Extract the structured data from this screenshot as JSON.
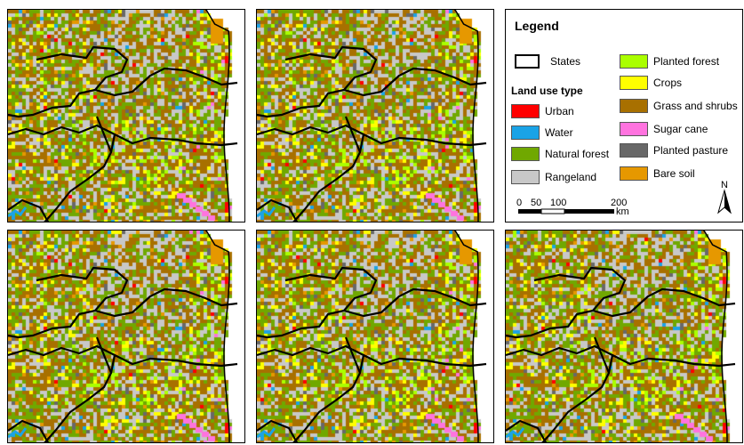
{
  "legend": {
    "title": "Legend",
    "states_label": "States",
    "land_use_heading": "Land use type",
    "classes": [
      {
        "name": "Urban",
        "color": "#ff0000"
      },
      {
        "name": "Water",
        "color": "#1aa3e6"
      },
      {
        "name": "Natural forest",
        "color": "#70a800"
      },
      {
        "name": "Rangeland",
        "color": "#c8c8c8"
      },
      {
        "name": "Planted forest",
        "color": "#aaff00"
      },
      {
        "name": "Crops",
        "color": "#ffff00"
      },
      {
        "name": "Grass and shrubs",
        "color": "#a87000"
      },
      {
        "name": "Sugar cane",
        "color": "#ff73df"
      },
      {
        "name": "Planted pasture",
        "color": "#686868"
      },
      {
        "name": "Bare soil",
        "color": "#e69800"
      }
    ]
  },
  "scale": {
    "ticks": [
      "0",
      "50",
      "100",
      "200"
    ],
    "unit": "km"
  },
  "north_label": "N"
}
